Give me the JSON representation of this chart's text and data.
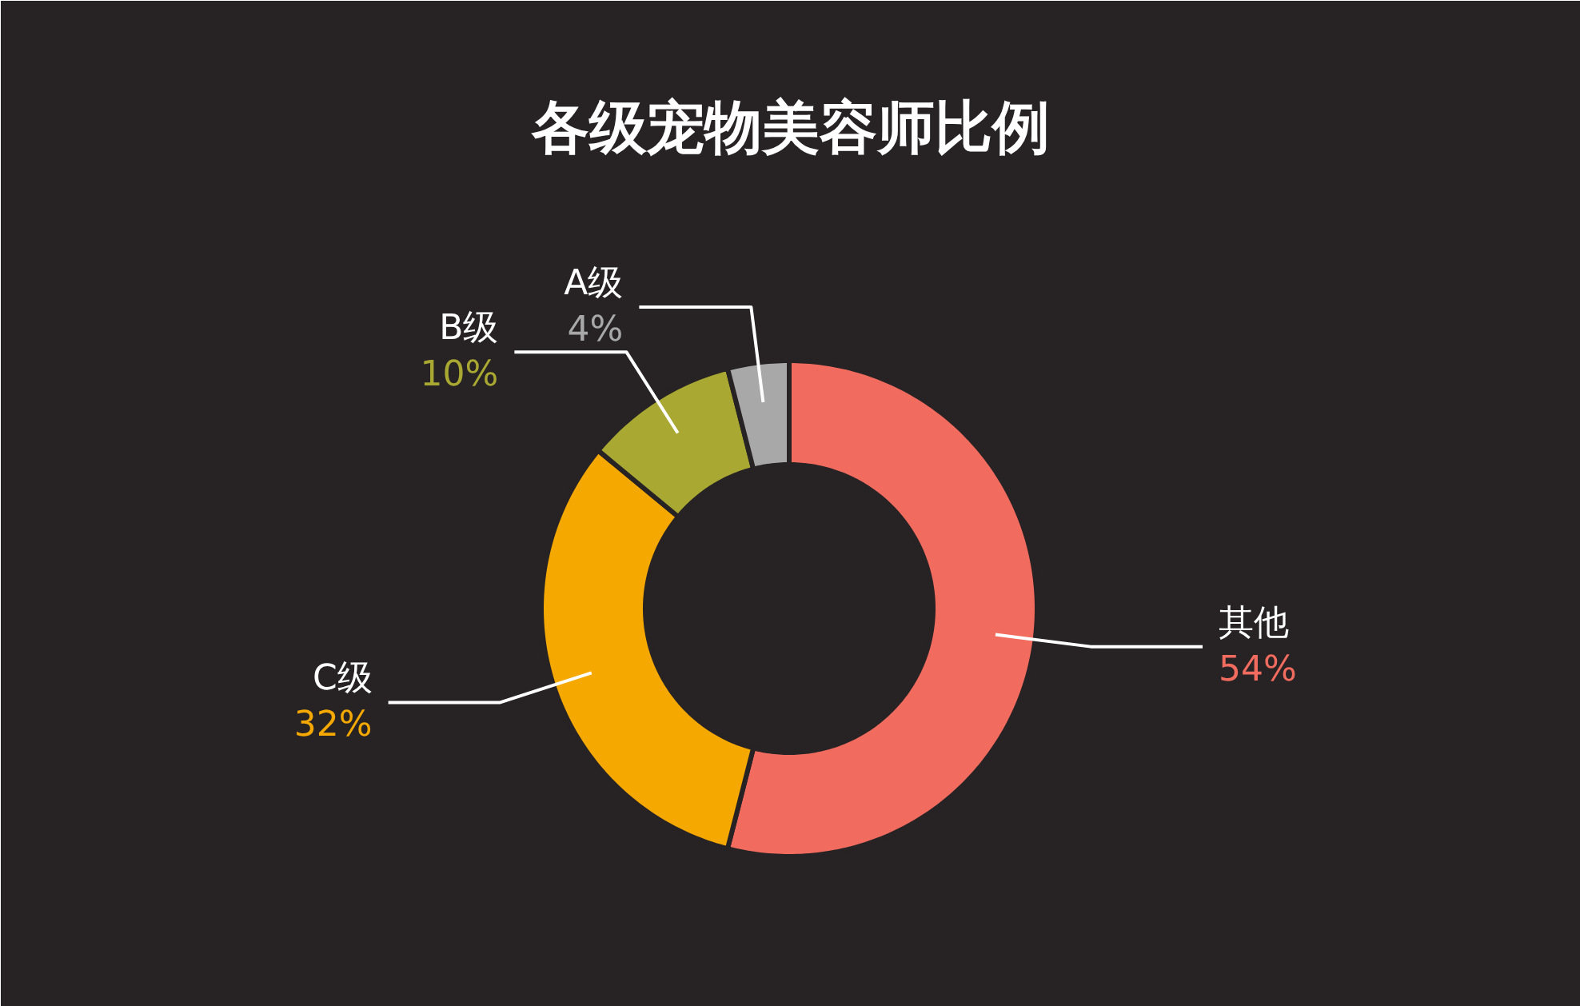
{
  "chart_data": {
    "type": "donut",
    "title": "各级宠物美容师比例",
    "categories": [
      "其他",
      "C级",
      "B级",
      "A级"
    ],
    "values": [
      54,
      32,
      10,
      4
    ],
    "value_labels": [
      "54%",
      "32%",
      "10%",
      "4%"
    ],
    "colors": [
      "#f26b5f",
      "#f5a800",
      "#a8a832",
      "#a8a8a8"
    ]
  }
}
